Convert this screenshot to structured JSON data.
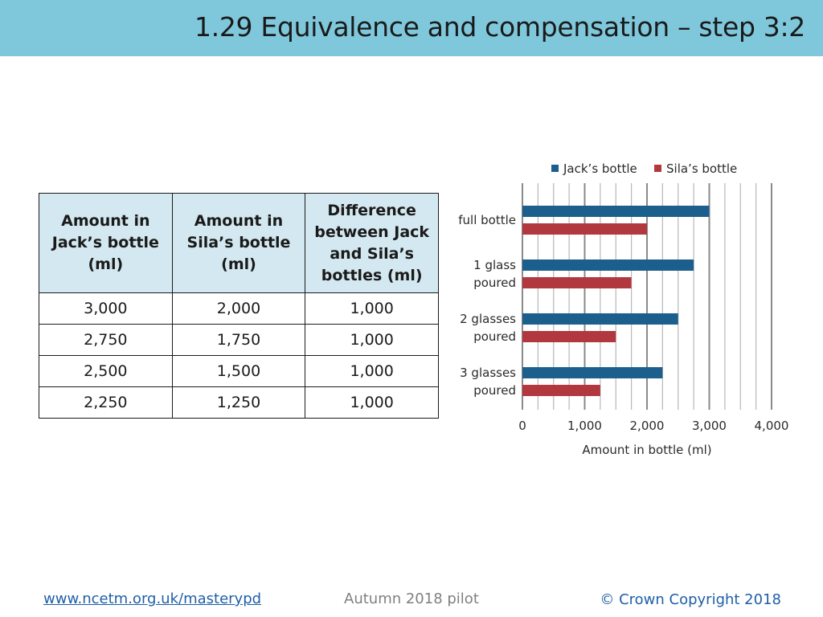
{
  "header": {
    "title": "1.29 Equivalence and compensation – step 3:2"
  },
  "table": {
    "headers": [
      "Amount in Jack’s bottle (ml)",
      "Amount in Sila’s bottle (ml)",
      "Difference between Jack and Sila’s bottles (ml)"
    ],
    "rows": [
      [
        "3,000",
        "2,000",
        "1,000"
      ],
      [
        "2,750",
        "1,750",
        "1,000"
      ],
      [
        "2,500",
        "1,500",
        "1,000"
      ],
      [
        "2,250",
        "1,250",
        "1,000"
      ]
    ]
  },
  "chart_data": {
    "type": "bar",
    "orientation": "horizontal",
    "categories": [
      "full bottle",
      "1 glass poured",
      "2 glasses poured",
      "3 glasses poured"
    ],
    "series": [
      {
        "name": "Jack’s bottle",
        "values": [
          3000,
          2750,
          2500,
          2250
        ],
        "color": "#1c5f8c"
      },
      {
        "name": "Sila’s bottle",
        "values": [
          2000,
          1750,
          1500,
          1250
        ],
        "color": "#b1383e"
      }
    ],
    "xlabel": "Amount in bottle (ml)",
    "ylabel": "",
    "xlim": [
      0,
      4000
    ],
    "x_ticks": [
      "0",
      "1,000",
      "2,000",
      "3,000",
      "4,000"
    ],
    "grid": "vertical every 250",
    "legend": "top"
  },
  "footer": {
    "link": "www.ncetm.org.uk/masterypd",
    "pilot": "Autumn 2018 pilot",
    "copyright": "© Crown Copyright 2018"
  }
}
